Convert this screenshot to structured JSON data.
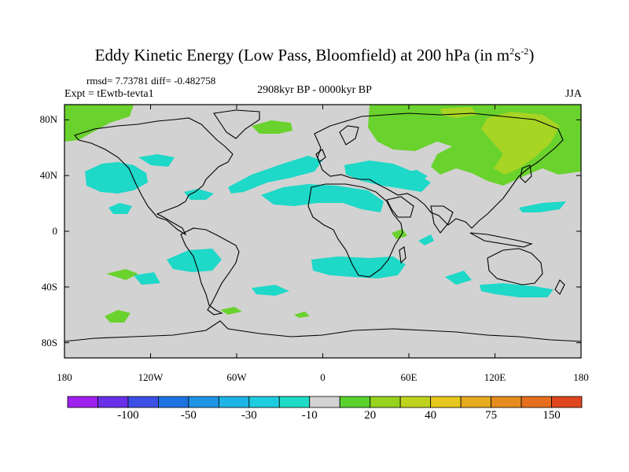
{
  "title": {
    "main": "Eddy Kinetic Energy (Low Pass, Bloomfield) at 200 hPa (in m",
    "sup1": "2",
    "mid": "s",
    "sup2": "-2",
    "end": ")"
  },
  "stats": "rmsd= 7.73781 diff= -0.482758",
  "expt": "Expt = tEwtb-tevta1",
  "period": "2908kyr BP - 0000kyr BP",
  "season": "JJA",
  "lat_labels": [
    "80N",
    "40N",
    "0",
    "40S",
    "80S"
  ],
  "lat_values": [
    80,
    40,
    0,
    -40,
    -80
  ],
  "lon_labels": [
    "180",
    "120W",
    "60W",
    "0",
    "60E",
    "120E",
    "180"
  ],
  "lon_values": [
    -180,
    -120,
    -60,
    0,
    60,
    120,
    180
  ],
  "colorbar": {
    "colors": [
      "#a020f0",
      "#6a2fe8",
      "#3c50e6",
      "#1e73e0",
      "#1e94e6",
      "#1eb4e6",
      "#1ecce0",
      "#1edcc8",
      "#d2d2d2",
      "#5ad22d",
      "#96d21e",
      "#bed21e",
      "#e6c81e",
      "#e6aa1e",
      "#e68c1e",
      "#e66e1e",
      "#e0461e"
    ],
    "labels": [
      "-100",
      "-50",
      "-30",
      "-10",
      "20",
      "40",
      "75",
      "150"
    ],
    "label_after_box": [
      1,
      3,
      5,
      7,
      9,
      11,
      13,
      15
    ]
  },
  "fill_colors": {
    "background": "#d2d2d2",
    "cyan": "#1ed8c8",
    "green": "#6ad22d",
    "lightgreen": "#a8d424"
  }
}
